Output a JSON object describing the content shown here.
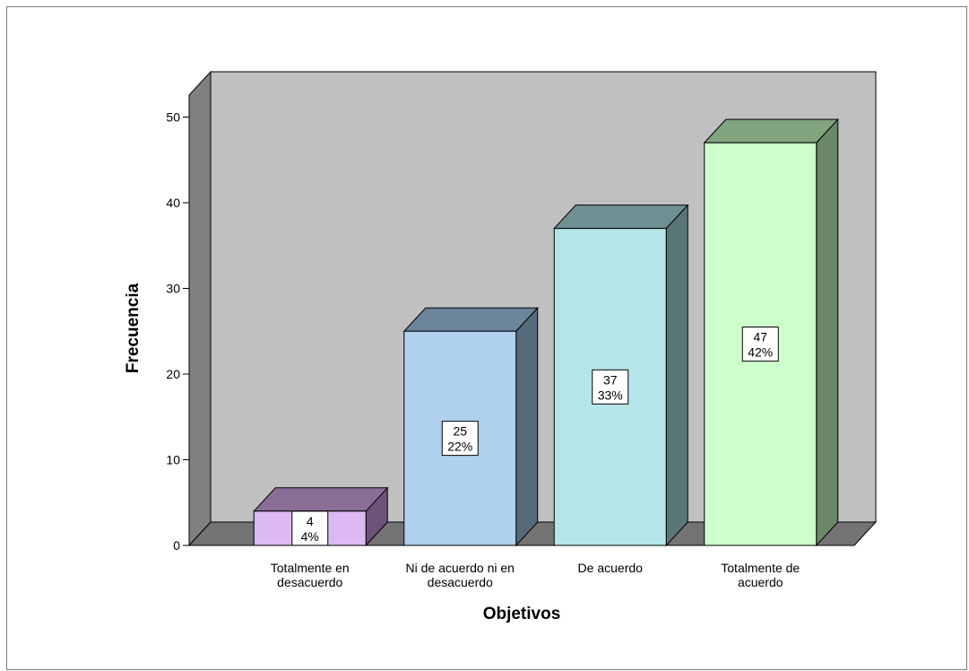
{
  "chart_data": {
    "type": "bar",
    "title": "",
    "xlabel": "Objetivos",
    "ylabel": "Frecuencia",
    "ylim": [
      0,
      53
    ],
    "yticks": [
      0,
      10,
      20,
      30,
      40,
      50
    ],
    "grid": false,
    "legend": "none",
    "style": "3d",
    "categories": [
      [
        "Totalmente en",
        "desacuerdo"
      ],
      [
        "Ni de acuerdo ni en",
        "desacuerdo"
      ],
      [
        "De acuerdo"
      ],
      [
        "Totalmente de",
        "acuerdo"
      ]
    ],
    "values": [
      4,
      25,
      37,
      47
    ],
    "percent_labels": [
      "4%",
      "22%",
      "33%",
      "42%"
    ],
    "count_labels": [
      "4",
      "25",
      "37",
      "47"
    ],
    "colors": {
      "bars_front": [
        "#dcb9f0",
        "#afd0ef",
        "#b4e6e8",
        "#ccffcc"
      ],
      "bars_top": [
        "#8b6e97",
        "#6c8499",
        "#6f9093",
        "#82a47f"
      ],
      "bars_side": [
        "#6e5378",
        "#566a7c",
        "#5b7679",
        "#6b8869"
      ],
      "wall_back": "#c0c0c0",
      "wall_left": "#808080",
      "floor": "#737373"
    }
  }
}
